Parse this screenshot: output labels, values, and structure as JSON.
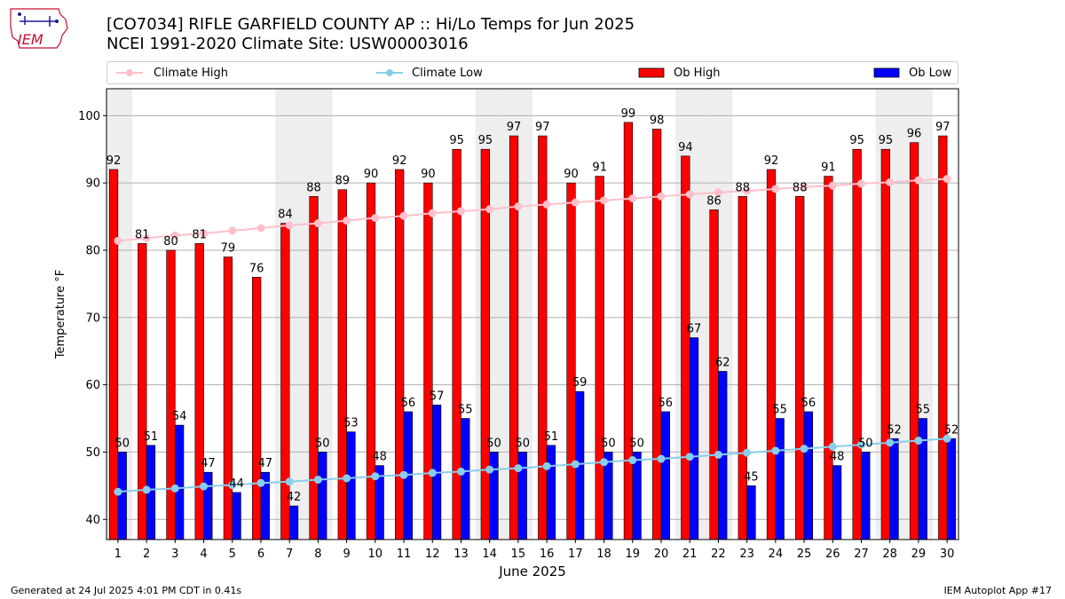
{
  "header": {
    "title_line1": "[CO7034] RIFLE GARFIELD COUNTY AP :: Hi/Lo Temps for Jun 2025",
    "title_line2": "NCEI 1991-2020 Climate Site: USW00003016",
    "logo_text": "IEM"
  },
  "legend": {
    "climate_high": "Climate High",
    "climate_low": "Climate Low",
    "ob_high": "Ob High",
    "ob_low": "Ob Low"
  },
  "footer": {
    "generated": "Generated at 24 Jul 2025 4:01 PM CDT in 0.41s",
    "app": "IEM Autoplot App #17"
  },
  "colors": {
    "ob_high": "#ff0000",
    "ob_low": "#0000ff",
    "climate_high": "#ffc0cb",
    "climate_low": "#87ceeb",
    "weekend_band": "#eeeeee",
    "grid": "#b0b0b0"
  },
  "chart_data": {
    "type": "bar",
    "xlabel": "June 2025",
    "ylabel": "Temperature °F",
    "ylim": [
      37,
      104
    ],
    "yticks": [
      40,
      50,
      60,
      70,
      80,
      90,
      100
    ],
    "grid": "horizontal",
    "legend_position": "top",
    "categories": [
      "1",
      "2",
      "3",
      "4",
      "5",
      "6",
      "7",
      "8",
      "9",
      "10",
      "11",
      "12",
      "13",
      "14",
      "15",
      "16",
      "17",
      "18",
      "19",
      "20",
      "21",
      "22",
      "23",
      "24",
      "25",
      "26",
      "27",
      "28",
      "29",
      "30"
    ],
    "weekend_days": [
      1,
      7,
      8,
      14,
      15,
      21,
      22,
      28,
      29
    ],
    "series": [
      {
        "name": "Ob High",
        "kind": "bar",
        "values": [
          92,
          81,
          80,
          81,
          79,
          76,
          84,
          88,
          89,
          90,
          92,
          90,
          95,
          95,
          97,
          97,
          90,
          91,
          99,
          98,
          94,
          86,
          88,
          92,
          88,
          91,
          95,
          95,
          96,
          97
        ]
      },
      {
        "name": "Ob Low",
        "kind": "bar",
        "values": [
          50,
          51,
          54,
          47,
          44,
          47,
          42,
          50,
          53,
          48,
          56,
          57,
          55,
          50,
          50,
          51,
          59,
          50,
          50,
          56,
          67,
          62,
          45,
          55,
          56,
          48,
          50,
          52,
          55,
          52
        ]
      },
      {
        "name": "Climate High",
        "kind": "line",
        "values": [
          81.4,
          81.8,
          82.2,
          82.5,
          82.9,
          83.3,
          83.7,
          84.0,
          84.4,
          84.8,
          85.1,
          85.5,
          85.8,
          86.1,
          86.5,
          86.8,
          87.1,
          87.4,
          87.7,
          88.0,
          88.3,
          88.6,
          88.8,
          89.1,
          89.4,
          89.6,
          89.9,
          90.1,
          90.4,
          90.6
        ]
      },
      {
        "name": "Climate Low",
        "kind": "line",
        "values": [
          44.1,
          44.4,
          44.6,
          44.9,
          45.1,
          45.4,
          45.6,
          45.9,
          46.1,
          46.4,
          46.6,
          46.9,
          47.1,
          47.4,
          47.6,
          47.9,
          48.2,
          48.5,
          48.8,
          49.0,
          49.3,
          49.6,
          49.9,
          50.2,
          50.5,
          50.8,
          51.1,
          51.4,
          51.7,
          52.0
        ]
      }
    ]
  }
}
